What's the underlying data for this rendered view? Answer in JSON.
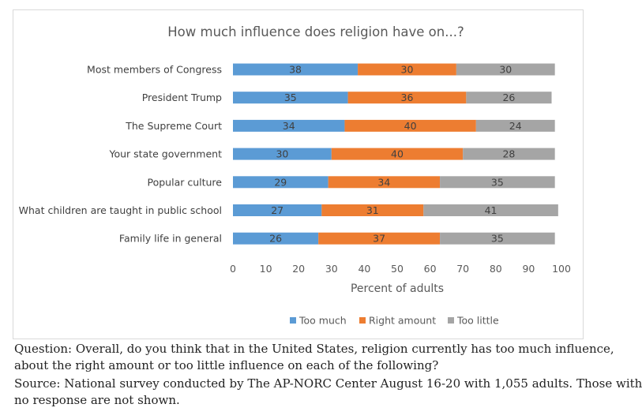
{
  "chart_data": {
    "type": "bar",
    "orientation": "horizontal",
    "stacked": true,
    "title": "How much influence does religion have on...?",
    "xlabel": "Percent of adults",
    "ylabel": "",
    "xlim": [
      0,
      100
    ],
    "xticks": [
      0,
      10,
      20,
      30,
      40,
      50,
      60,
      70,
      80,
      90,
      100
    ],
    "grid": false,
    "legend_position": "bottom",
    "categories": [
      "Most members of Congress",
      "President Trump",
      "The Supreme Court",
      "Your state government",
      "Popular culture",
      "What children are taught in public school",
      "Family life in general"
    ],
    "series": [
      {
        "name": "Too much",
        "color": "#5b9bd5",
        "values": [
          38,
          35,
          34,
          30,
          29,
          27,
          26
        ]
      },
      {
        "name": "Right amount",
        "color": "#ed7d31",
        "values": [
          30,
          36,
          40,
          40,
          34,
          31,
          37
        ]
      },
      {
        "name": "Too little",
        "color": "#a5a5a5",
        "values": [
          30,
          26,
          24,
          28,
          35,
          41,
          35
        ]
      }
    ]
  },
  "caption": {
    "question_line1": "Question: Overall, do you think that in the United States, religion currently has too much influence,",
    "question_line2": "about the right amount or too little influence on each of the following?",
    "source_line1": "Source: National survey conducted by The AP-NORC Center August 16-20 with 1,055 adults. Those with",
    "source_line2": "no response are not shown."
  }
}
